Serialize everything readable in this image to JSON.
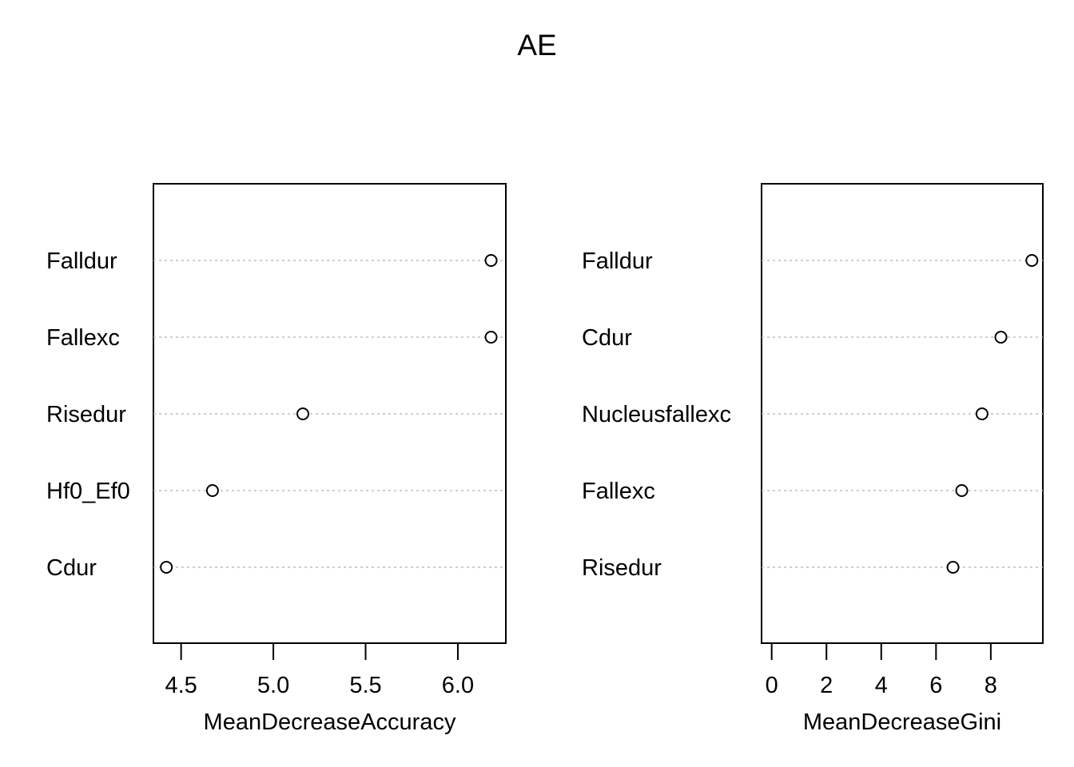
{
  "title": "AE",
  "chart_data": [
    {
      "type": "scatter",
      "title": "",
      "xlabel": "MeanDecreaseAccuracy",
      "ylabel": "",
      "xlim": [
        4.35,
        6.26
      ],
      "xticks": [
        "4.5",
        "5.0",
        "5.5",
        "6.0"
      ],
      "xtick_values": [
        4.5,
        5.0,
        5.5,
        6.0
      ],
      "grid": "horizontal dotted",
      "categories": [
        "Falldur",
        "Fallexc",
        "Risedur",
        "Hf0_Ef0",
        "Cdur"
      ],
      "values": [
        6.18,
        6.18,
        5.16,
        4.67,
        4.42
      ]
    },
    {
      "type": "scatter",
      "title": "",
      "xlabel": "MeanDecreaseGini",
      "ylabel": "",
      "xlim": [
        -0.37,
        9.9
      ],
      "xticks": [
        "0",
        "2",
        "4",
        "6",
        "8"
      ],
      "xtick_values": [
        0,
        2,
        4,
        6,
        8
      ],
      "grid": "horizontal dotted",
      "categories": [
        "Falldur",
        "Cdur",
        "Nucleusfallexc",
        "Fallexc",
        "Risedur"
      ],
      "values": [
        9.5,
        8.37,
        7.68,
        6.94,
        6.62
      ]
    }
  ]
}
